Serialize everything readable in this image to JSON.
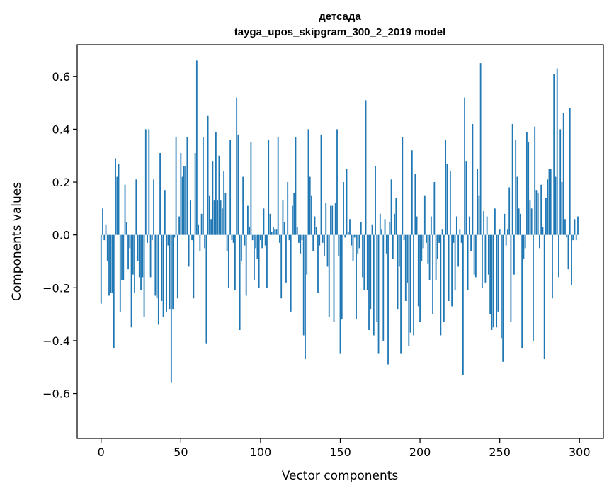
{
  "chart_data": {
    "type": "bar",
    "title": "детсада",
    "subtitle": "tayga_upos_skipgram_300_2_2019 model",
    "xlabel": "Vector components",
    "ylabel": "Components values",
    "xlim": [
      -15,
      315
    ],
    "ylim": [
      -0.77,
      0.72
    ],
    "xticks": [
      0,
      50,
      100,
      150,
      200,
      250,
      300
    ],
    "xtick_labels": [
      "0",
      "50",
      "100",
      "150",
      "200",
      "250",
      "300"
    ],
    "yticks": [
      -0.6,
      -0.4,
      -0.2,
      0.0,
      0.2,
      0.4,
      0.6
    ],
    "ytick_labels": [
      "−0.6",
      "−0.4",
      "−0.2",
      "0.0",
      "0.2",
      "0.4",
      "0.6"
    ],
    "bar_color": "#1f77b4",
    "values": [
      -0.26,
      0.1,
      -0.02,
      0.04,
      -0.1,
      -0.23,
      -0.22,
      -0.22,
      -0.43,
      0.29,
      0.22,
      0.27,
      -0.29,
      -0.17,
      -0.17,
      0.19,
      0.05,
      -0.13,
      -0.05,
      -0.35,
      -0.15,
      -0.22,
      0.21,
      -0.1,
      -0.16,
      -0.21,
      -0.16,
      -0.31,
      0.4,
      -0.03,
      0.4,
      -0.16,
      -0.02,
      0.21,
      -0.23,
      -0.24,
      -0.34,
      0.31,
      -0.25,
      -0.31,
      0.17,
      -0.29,
      -0.04,
      -0.28,
      -0.56,
      -0.28,
      -0.01,
      0.37,
      -0.24,
      0.07,
      0.31,
      0.22,
      0.26,
      0.26,
      0.37,
      -0.12,
      0.13,
      -0.02,
      -0.24,
      0.31,
      0.66,
      0.04,
      -0.06,
      0.08,
      0.37,
      -0.05,
      -0.41,
      0.45,
      0.15,
      0.06,
      0.28,
      0.13,
      0.39,
      0.13,
      0.3,
      0.13,
      0.1,
      0.24,
      0.16,
      -0.06,
      -0.2,
      0.36,
      -0.02,
      -0.03,
      -0.21,
      0.52,
      0.38,
      -0.36,
      -0.1,
      0.22,
      -0.04,
      -0.23,
      0.11,
      0.03,
      0.35,
      -0.02,
      -0.17,
      -0.05,
      -0.09,
      -0.2,
      -0.02,
      -0.05,
      0.1,
      -0.04,
      -0.2,
      0.36,
      0.08,
      0.01,
      0.03,
      0.02,
      0.02,
      0.37,
      -0.03,
      -0.24,
      0.13,
      0.05,
      -0.18,
      0.2,
      -0.02,
      -0.29,
      0.11,
      0.16,
      0.37,
      0.03,
      -0.03,
      -0.07,
      -0.02,
      -0.38,
      -0.47,
      -0.15,
      0.4,
      0.22,
      0.15,
      -0.06,
      0.07,
      0.03,
      -0.22,
      -0.04,
      0.38,
      -0.03,
      -0.08,
      0.12,
      -0.12,
      -0.31,
      0.11,
      0.11,
      -0.33,
      0.12,
      0.4,
      -0.08,
      -0.45,
      -0.32,
      0.2,
      -0.01,
      0.25,
      0.01,
      0.06,
      -0.04,
      -0.1,
      -0.01,
      -0.32,
      -0.07,
      -0.05,
      0.05,
      -0.16,
      -0.21,
      0.51,
      -0.21,
      -0.36,
      -0.28,
      0.04,
      -0.38,
      0.26,
      -0.33,
      -0.45,
      0.08,
      0.02,
      -0.4,
      0.06,
      -0.07,
      -0.49,
      0.05,
      0.21,
      -0.09,
      0.08,
      0.14,
      -0.28,
      -0.12,
      -0.45,
      0.37,
      -0.02,
      -0.25,
      -0.18,
      -0.42,
      -0.37,
      0.32,
      -0.38,
      0.23,
      0.07,
      -0.27,
      -0.33,
      -0.1,
      -0.05,
      0.15,
      -0.03,
      -0.11,
      -0.17,
      0.07,
      -0.3,
      0.2,
      -0.17,
      -0.09,
      -0.03,
      -0.38,
      0.02,
      -0.33,
      0.36,
      0.27,
      -0.25,
      0.24,
      -0.27,
      -0.03,
      -0.21,
      0.07,
      -0.12,
      0.02,
      -0.03,
      -0.53,
      0.52,
      0.28,
      -0.21,
      0.07,
      -0.06,
      0.42,
      -0.15,
      -0.16,
      0.25,
      0.15,
      0.65,
      -0.2,
      0.09,
      -0.18,
      0.07,
      -0.15,
      -0.3,
      -0.36,
      -0.35,
      0.1,
      -0.35,
      -0.29,
      0.02,
      -0.39,
      -0.48,
      0.08,
      -0.04,
      0.02,
      0.18,
      -0.33,
      0.42,
      -0.15,
      0.36,
      0.22,
      0.1,
      0.08,
      -0.43,
      -0.09,
      -0.05,
      0.39,
      0.35,
      0.13,
      0.1,
      -0.4,
      0.41,
      0.17,
      0.16,
      -0.05,
      0.19,
      0.03,
      -0.47,
      0.14,
      0.21,
      0.25,
      0.25,
      -0.24,
      0.61,
      0.22,
      0.63,
      -0.16,
      0.4,
      0.2,
      0.46,
      0.06,
      -0.01,
      -0.13,
      0.48,
      -0.19,
      -0.02,
      0.06,
      -0.02,
      0.07
    ]
  }
}
